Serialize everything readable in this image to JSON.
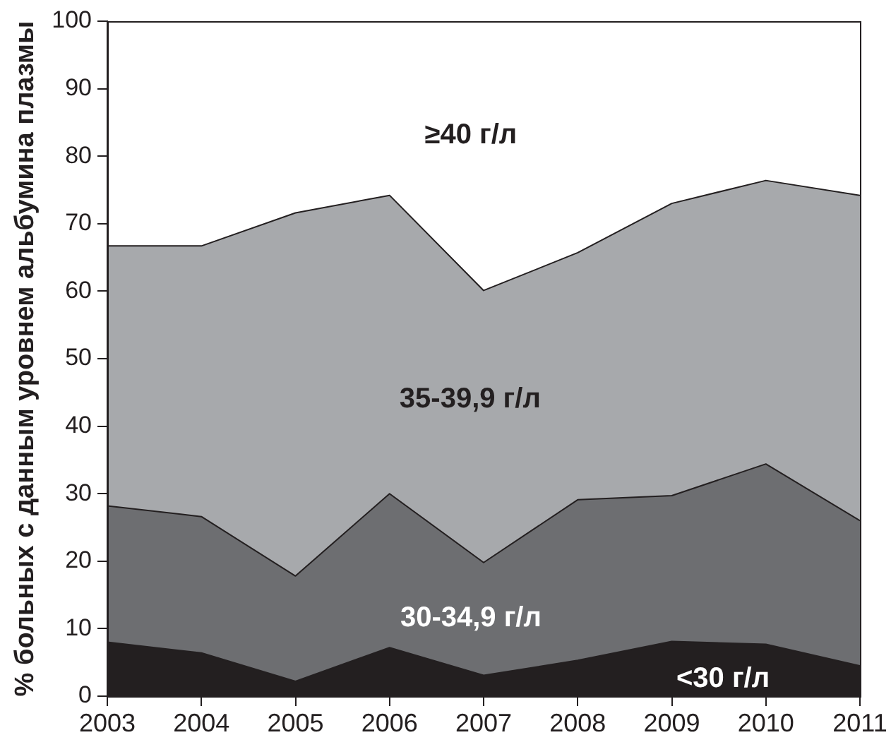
{
  "chart_data": {
    "type": "area",
    "stacked": true,
    "ylabel": "% больных с данным уровнем альбумина плазмы",
    "x": [
      2003,
      2004,
      2005,
      2006,
      2007,
      2008,
      2009,
      2010,
      2011
    ],
    "xlim": [
      2003,
      2011
    ],
    "xticks": [
      2003,
      2004,
      2005,
      2006,
      2007,
      2008,
      2009,
      2010,
      2011
    ],
    "ylim": [
      0,
      100
    ],
    "yticks": [
      0,
      10,
      20,
      30,
      40,
      50,
      60,
      70,
      80,
      90,
      100
    ],
    "series": [
      {
        "name": "<30 г/л",
        "color": "#231f20",
        "values": [
          8.0,
          6.4,
          2.2,
          7.2,
          3.1,
          5.3,
          8.1,
          7.7,
          4.5
        ]
      },
      {
        "name": "30-34,9 г/л",
        "color": "#6d6e71",
        "values": [
          20.2,
          20.2,
          15.6,
          22.8,
          16.7,
          23.8,
          21.6,
          26.7,
          21.5
        ]
      },
      {
        "name": "35-39,9 г/л",
        "color": "#a7a9ac",
        "values": [
          38.5,
          40.1,
          53.8,
          44.2,
          40.3,
          36.6,
          43.3,
          42.0,
          48.2
        ]
      }
    ],
    "annotations": [
      "≥40 г/л"
    ]
  }
}
